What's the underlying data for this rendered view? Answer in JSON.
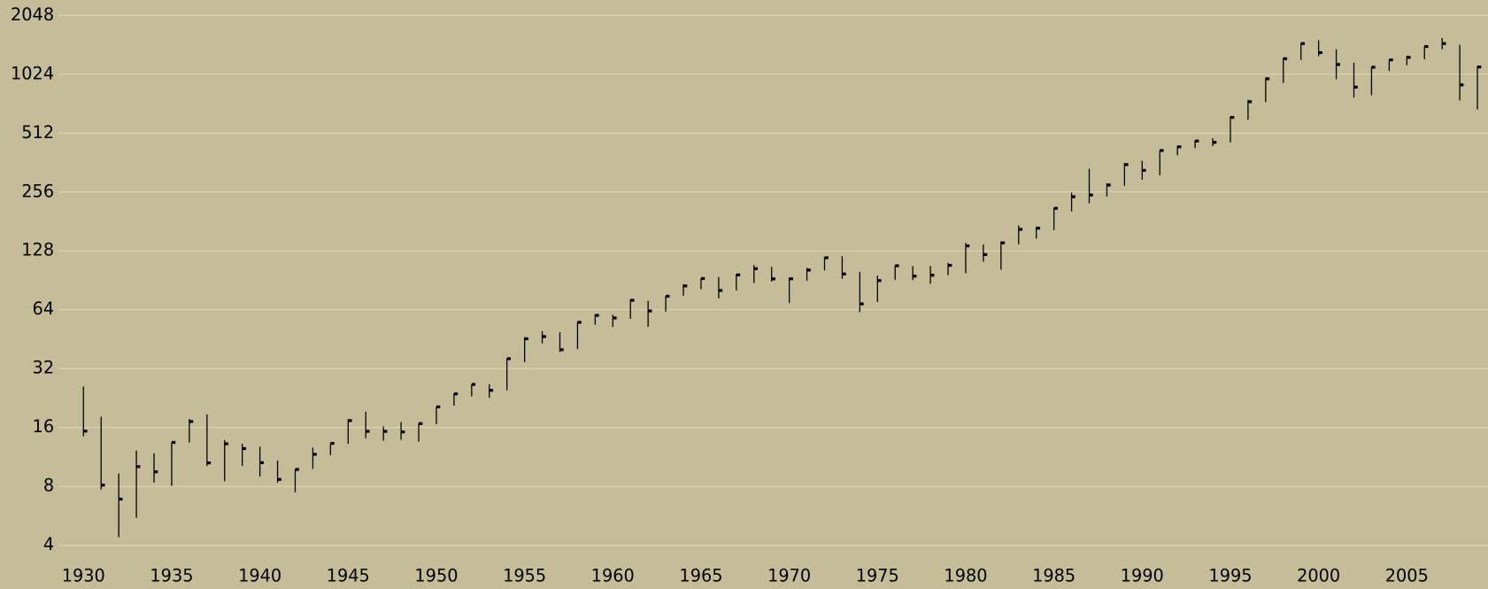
{
  "chart_data": {
    "type": "hlc",
    "x": [
      1930,
      1931,
      1932,
      1933,
      1934,
      1935,
      1936,
      1937,
      1938,
      1939,
      1940,
      1941,
      1942,
      1943,
      1944,
      1945,
      1946,
      1947,
      1948,
      1949,
      1950,
      1951,
      1952,
      1953,
      1954,
      1955,
      1956,
      1957,
      1958,
      1959,
      1960,
      1961,
      1962,
      1963,
      1964,
      1965,
      1966,
      1967,
      1968,
      1969,
      1970,
      1971,
      1972,
      1973,
      1974,
      1975,
      1976,
      1977,
      1978,
      1979,
      1980,
      1981,
      1982,
      1983,
      1984,
      1985,
      1986,
      1987,
      1988,
      1989,
      1990,
      1991,
      1992,
      1993,
      1994,
      1995,
      1996,
      1997,
      1998,
      1999,
      2000,
      2001,
      2002,
      2003,
      2004,
      2005,
      2006,
      2007,
      2008,
      2009
    ],
    "high": [
      25.92,
      18.17,
      9.31,
      12.2,
      11.82,
      13.46,
      17.69,
      18.68,
      13.79,
      13.23,
      12.77,
      10.86,
      9.77,
      12.64,
      13.29,
      17.68,
      19.25,
      16.2,
      17.06,
      16.79,
      20.43,
      23.85,
      26.59,
      26.66,
      35.98,
      46.41,
      49.74,
      49.13,
      55.21,
      60.71,
      60.39,
      72.64,
      71.13,
      75.02,
      86.28,
      92.63,
      94.06,
      97.59,
      108.37,
      106.16,
      93.46,
      104.77,
      119.12,
      120.24,
      99.8,
      95.61,
      107.83,
      107,
      106.99,
      111.27,
      140.52,
      138.12,
      143.02,
      172.65,
      170.41,
      212.02,
      254,
      336.77,
      283.66,
      359.8,
      369.78,
      418.32,
      441.28,
      470.94,
      482,
      621.69,
      757.03,
      983.79,
      1241.81,
      1469.25,
      1527.46,
      1373.73,
      1172.51,
      1111.92,
      1213.55,
      1272.74,
      1427.09,
      1565.15,
      1447.16,
      1127.78
    ],
    "low": [
      14.44,
      7.72,
      4.4,
      5.53,
      8.36,
      8.06,
      13.4,
      10.17,
      8.5,
      10.18,
      8.99,
      8.37,
      7.47,
      9.84,
      11.56,
      13.21,
      14.12,
      13.71,
      13.84,
      13.55,
      16.65,
      20.69,
      23.09,
      22.71,
      24.8,
      34.58,
      43.11,
      38.98,
      40.33,
      53.58,
      52.3,
      57.57,
      52.32,
      62.69,
      75.43,
      81.6,
      73.2,
      80.38,
      87.72,
      89.2,
      69.29,
      90.16,
      101.67,
      92.16,
      62.28,
      70.04,
      90.9,
      90.71,
      86.9,
      96.13,
      98.22,
      112.77,
      102.42,
      138.34,
      147.82,
      163.36,
      203.49,
      223.92,
      242.63,
      275.31,
      295.46,
      311.49,
      394.5,
      429.05,
      438.92,
      459.11,
      598.48,
      737.01,
      923.32,
      1212.19,
      1264.74,
      965.8,
      776.76,
      800.73,
      1063.23,
      1137.5,
      1219.29,
      1374.12,
      752.44,
      676.53
    ],
    "close": [
      15.34,
      8.12,
      6.89,
      10.1,
      9.5,
      13.43,
      17.18,
      10.55,
      13.21,
      12.49,
      10.58,
      8.69,
      9.77,
      11.67,
      13.28,
      17.36,
      15.3,
      15.3,
      15.2,
      16.76,
      20.41,
      23.77,
      26.57,
      24.81,
      35.98,
      45.48,
      46.67,
      39.99,
      55.21,
      59.89,
      58.11,
      71.55,
      63.1,
      75.02,
      84.75,
      92.43,
      80.33,
      96.47,
      103.86,
      92.06,
      92.15,
      102.09,
      118.05,
      97.55,
      68.56,
      90.19,
      107.46,
      95.1,
      96.11,
      107.94,
      135.76,
      122.55,
      140.64,
      164.93,
      167.24,
      211.28,
      242.17,
      247.08,
      277.72,
      353.4,
      330.22,
      417.09,
      435.71,
      466.45,
      459.27,
      615.93,
      740.74,
      970.43,
      1229.23,
      1469.25,
      1320.28,
      1148.08,
      879.82,
      1111.92,
      1211.92,
      1248.29,
      1418.3,
      1468.36,
      903.25,
      1115.1
    ],
    "color": "#000000",
    "xlim": [
      1925.27,
      2009.6
    ],
    "xticks": [
      1930,
      1935,
      1940,
      1945,
      1950,
      1955,
      1960,
      1965,
      1970,
      1975,
      1980,
      1985,
      1990,
      1995,
      2000,
      2005
    ],
    "ylim": [
      3.35,
      2449
    ],
    "yticks": [
      4,
      8,
      16,
      32,
      64,
      128,
      256,
      512,
      1024,
      2048
    ],
    "yscale": "log",
    "grid": true
  }
}
